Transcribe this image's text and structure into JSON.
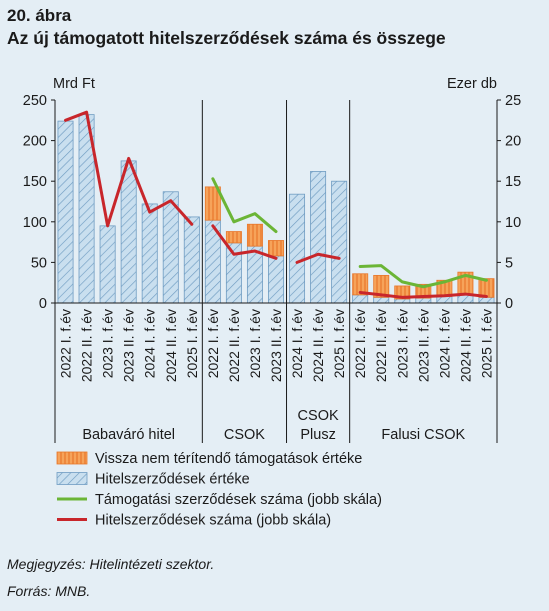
{
  "header": {
    "label": "20. ábra",
    "title": "Az új támogatott hitelszerződések száma és összege"
  },
  "footer": {
    "note": "Megjegyzés: Hitelintézeti szektor.",
    "source": "Forrás: MNB."
  },
  "colors": {
    "bar_loan_fill": "#c9dfef",
    "bar_loan_hatch": "#6f9cc2",
    "bar_grant_fill": "#f6a35a",
    "bar_grant_stripe": "#e8772a",
    "line_grant": "#6bb536",
    "line_loan": "#c8262b"
  },
  "chart_data": {
    "type": "bar",
    "ylabel_left": "Mrd Ft",
    "ylabel_right": "Ezer db",
    "ylim_left": [
      0,
      250
    ],
    "ylim_right": [
      0,
      25
    ],
    "yticks_left": [
      "0",
      "50",
      "100",
      "150",
      "200",
      "250"
    ],
    "yticks_right": [
      "0",
      "5",
      "10",
      "15",
      "20",
      "25"
    ],
    "grid": false,
    "legend_position": "bottom",
    "legend": [
      {
        "key": "grant_value",
        "label": "Vissza nem térítendő támogatások értéke"
      },
      {
        "key": "loan_value",
        "label": "Hitelszerződések értéke"
      },
      {
        "key": "grant_count",
        "label": "Támogatási szerződések száma (jobb skála)"
      },
      {
        "key": "loan_count",
        "label": "Hitelszerződések száma (jobb skála)"
      }
    ],
    "groups": [
      {
        "name": "Babaváró hitel",
        "categories": [
          "2022 I. f.év",
          "2022 II. f.év",
          "2023 I. f.év",
          "2023 II. f.év",
          "2024 I. f.év",
          "2024 II. f.év",
          "2025 I. f.év"
        ],
        "loan_value": [
          224,
          232,
          95,
          175,
          122,
          137,
          106
        ],
        "grant_value": [
          0,
          0,
          0,
          0,
          0,
          0,
          0
        ],
        "loan_count": [
          22.5,
          23.5,
          9.5,
          17.8,
          11.2,
          12.6,
          9.7
        ],
        "grant_count": []
      },
      {
        "name": "CSOK",
        "categories": [
          "2022 I. f.év",
          "2022 II. f.év",
          "2023 I. f.év",
          "2023 II. f.év"
        ],
        "loan_value": [
          102,
          74,
          70,
          58
        ],
        "grant_value": [
          41,
          14,
          27,
          19
        ],
        "loan_count": [
          9.5,
          6.0,
          6.4,
          5.5
        ],
        "grant_count": [
          15.3,
          10.0,
          11.0,
          8.8
        ]
      },
      {
        "name": "CSOK Plusz",
        "categories": [
          "2024 I. f.év",
          "2024 II. f.év",
          "2025 I. f.év"
        ],
        "loan_value": [
          134,
          162,
          150
        ],
        "grant_value": [
          0,
          0,
          0
        ],
        "loan_count": [
          5.0,
          6.0,
          5.5
        ],
        "grant_count": []
      },
      {
        "name": "Falusi CSOK",
        "categories": [
          "2022 I. f.év",
          "2022 II. f.év",
          "2023 I. f.év",
          "2023 II. f.év",
          "2024 I. f.év",
          "2024 II. f.év",
          "2025 I. f.év"
        ],
        "loan_value": [
          10,
          7,
          5,
          6,
          8,
          10,
          7
        ],
        "grant_value": [
          26,
          27,
          16,
          17,
          20,
          28,
          23
        ],
        "loan_count": [
          1.3,
          1.0,
          0.7,
          0.8,
          0.9,
          1.1,
          0.8
        ],
        "grant_count": [
          4.5,
          4.6,
          2.6,
          2.0,
          2.6,
          3.4,
          2.8
        ]
      }
    ]
  }
}
